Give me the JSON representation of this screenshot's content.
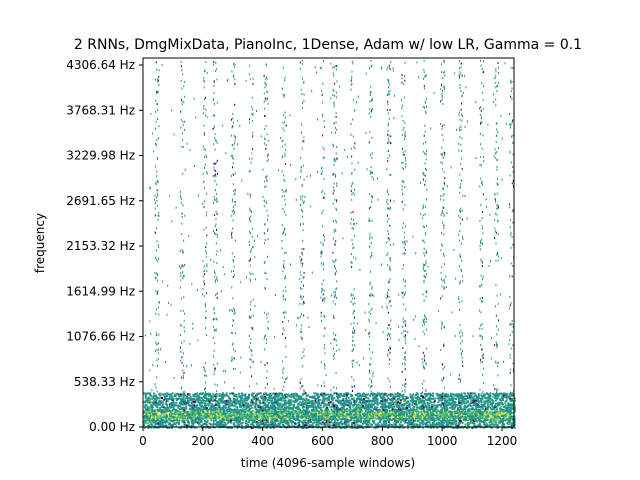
{
  "chart_data": {
    "type": "heatmap",
    "title": "2 RNNs, DmgMixData, PianoInc, 1Dense, Adam w/ low LR, Gamma = 0.1",
    "xlabel": "time (4096-sample windows)",
    "ylabel": "frequency",
    "xlim": [
      0,
      1240
    ],
    "ylim": [
      0,
      4390
    ],
    "x_ticks": [
      {
        "value": 0,
        "label": "0"
      },
      {
        "value": 200,
        "label": "200"
      },
      {
        "value": 400,
        "label": "400"
      },
      {
        "value": 600,
        "label": "600"
      },
      {
        "value": 800,
        "label": "800"
      },
      {
        "value": 1000,
        "label": "1000"
      },
      {
        "value": 1200,
        "label": "1200"
      }
    ],
    "y_ticks": [
      {
        "value": 0.0,
        "label": "0.00 Hz"
      },
      {
        "value": 538.33,
        "label": "538.33 Hz"
      },
      {
        "value": 1076.66,
        "label": "1076.66 Hz"
      },
      {
        "value": 1614.99,
        "label": "1614.99 Hz"
      },
      {
        "value": 2153.32,
        "label": "2153.32 Hz"
      },
      {
        "value": 2691.65,
        "label": "2691.65 Hz"
      },
      {
        "value": 3229.98,
        "label": "3229.98 Hz"
      },
      {
        "value": 3768.31,
        "label": "3768.31 Hz"
      },
      {
        "value": 4306.64,
        "label": "4306.64 Hz"
      }
    ],
    "colormap": [
      "#440154",
      "#21918c",
      "#5ec962",
      "#fde725"
    ],
    "background": "#ffffff",
    "vertical_streak_times": [
      45,
      130,
      205,
      240,
      300,
      360,
      410,
      470,
      530,
      600,
      640,
      700,
      760,
      820,
      870,
      940,
      1000,
      1060,
      1130,
      1180,
      1230
    ],
    "dense_band_hz": [
      0,
      420
    ],
    "bright_band_hz": [
      90,
      200
    ]
  }
}
